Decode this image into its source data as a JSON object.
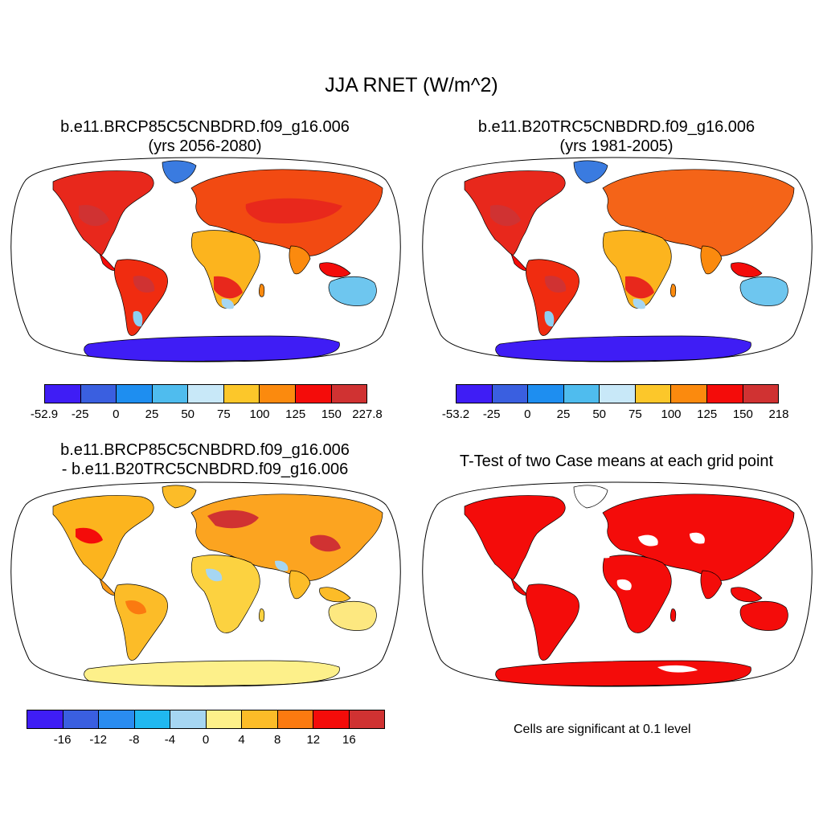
{
  "main_title": "JJA RNET (W/m^2)",
  "panels": [
    {
      "id": "future",
      "title_line1": "b.e11.BRCP85C5CNBDRD.f09_g16.006",
      "title_line2": "(yrs 2056-2080)",
      "colorbar": {
        "colors": [
          "#3f1df5",
          "#3a5fe0",
          "#1e8ef0",
          "#4fbcee",
          "#c8e8f8",
          "#fcc72a",
          "#fb8a0e",
          "#f40c0a",
          "#d03232"
        ],
        "labels": [
          "-52.9",
          "-25",
          "0",
          "25",
          "50",
          "75",
          "100",
          "125",
          "150",
          "227.8"
        ]
      }
    },
    {
      "id": "historical",
      "title_line1": "b.e11.B20TRC5CNBDRD.f09_g16.006",
      "title_line2": "(yrs 1981-2005)",
      "colorbar": {
        "colors": [
          "#3f1df5",
          "#3a5fe0",
          "#1e8ef0",
          "#4fbcee",
          "#c8e8f8",
          "#fcc72a",
          "#fb8a0e",
          "#f40c0a",
          "#d03232"
        ],
        "labels": [
          "-53.2",
          "-25",
          "0",
          "25",
          "50",
          "75",
          "100",
          "125",
          "150",
          "218"
        ]
      }
    },
    {
      "id": "difference",
      "title_line1": "b.e11.BRCP85C5CNBDRD.f09_g16.006",
      "title_line2": "- b.e11.B20TRC5CNBDRD.f09_g16.006",
      "colorbar": {
        "colors": [
          "#3f1df5",
          "#3a5fe0",
          "#2a8cf0",
          "#20b8f0",
          "#a6d6f2",
          "#fdf08a",
          "#fcbc28",
          "#fb7a10",
          "#f40c0a",
          "#d03232"
        ],
        "labels": [
          "-16",
          "-12",
          "-8",
          "-4",
          "0",
          "4",
          "8",
          "12",
          "16"
        ]
      }
    },
    {
      "id": "ttest",
      "title_line1": "T-Test of two Case means at each grid point",
      "note": "Cells are significant at 0.1 level",
      "significant_color": "#f40c0a"
    }
  ]
}
